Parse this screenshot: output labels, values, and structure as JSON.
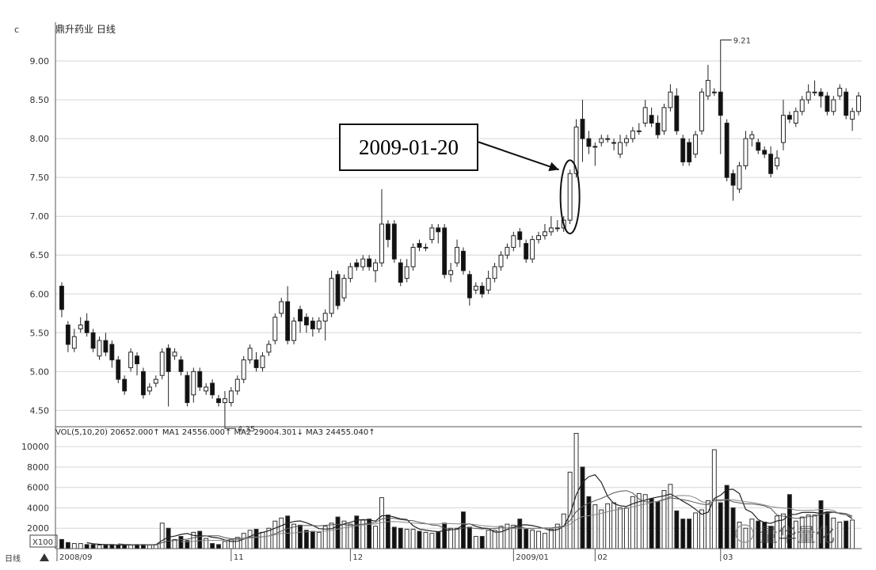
{
  "chart_data": {
    "type": "candlestick",
    "title": "鼎升药业 日线",
    "price_axis": {
      "ticks": [
        "9.00",
        "8.50",
        "8.00",
        "7.50",
        "7.00",
        "6.50",
        "6.00",
        "5.50",
        "5.00",
        "4.50"
      ],
      "ylim": [
        4.3,
        9.5
      ]
    },
    "volume_axis": {
      "ticks": [
        "10000",
        "8000",
        "6000",
        "4000",
        "2000"
      ],
      "ylim": [
        0,
        11800
      ],
      "unit": "X100"
    },
    "volume_legend": "VOL(5,10,20) 20652.000↑ MA1 24556.000↑ MA2 29004.301↓ MA3 24455.040↑",
    "x_labels": [
      "2008/09",
      "11",
      "12",
      "2009/01",
      "02",
      "03"
    ],
    "x_label_index": [
      0,
      27,
      46,
      72,
      85,
      105
    ],
    "corner_label": "日线",
    "max_label": "9.21",
    "min_label": "4.35",
    "annotation": "2009-01-20",
    "annotation_index": 81,
    "watermark": "量华量化",
    "candles": [
      [
        6.1,
        5.8,
        6.15,
        5.7
      ],
      [
        5.6,
        5.35,
        5.65,
        5.25
      ],
      [
        5.3,
        5.45,
        5.55,
        5.25
      ],
      [
        5.55,
        5.6,
        5.7,
        5.5
      ],
      [
        5.65,
        5.5,
        5.75,
        5.45
      ],
      [
        5.5,
        5.3,
        5.55,
        5.25
      ],
      [
        5.2,
        5.4,
        5.45,
        5.15
      ],
      [
        5.4,
        5.25,
        5.5,
        5.2
      ],
      [
        5.35,
        5.15,
        5.4,
        5.05
      ],
      [
        5.15,
        4.9,
        5.2,
        4.85
      ],
      [
        4.9,
        4.75,
        4.95,
        4.7
      ],
      [
        5.05,
        5.25,
        5.3,
        5.0
      ],
      [
        5.2,
        5.1,
        5.25,
        4.95
      ],
      [
        5.0,
        4.7,
        5.05,
        4.65
      ],
      [
        4.75,
        4.8,
        4.85,
        4.7
      ],
      [
        4.85,
        4.9,
        4.95,
        4.8
      ],
      [
        4.95,
        5.25,
        5.3,
        4.9
      ],
      [
        5.3,
        5.0,
        5.35,
        4.55
      ],
      [
        5.2,
        5.25,
        5.3,
        5.15
      ],
      [
        5.15,
        5.0,
        5.2,
        4.95
      ],
      [
        4.95,
        4.6,
        5.0,
        4.55
      ],
      [
        4.7,
        5.0,
        5.05,
        4.6
      ],
      [
        5.0,
        4.8,
        5.05,
        4.75
      ],
      [
        4.75,
        4.8,
        4.85,
        4.7
      ],
      [
        4.85,
        4.7,
        4.9,
        4.65
      ],
      [
        4.65,
        4.6,
        4.7,
        4.55
      ],
      [
        4.6,
        4.65,
        4.75,
        4.35
      ],
      [
        4.6,
        4.75,
        4.8,
        4.55
      ],
      [
        4.75,
        4.9,
        4.95,
        4.7
      ],
      [
        4.9,
        5.15,
        5.2,
        4.85
      ],
      [
        5.15,
        5.3,
        5.35,
        5.1
      ],
      [
        5.15,
        5.05,
        5.25,
        5.0
      ],
      [
        5.05,
        5.2,
        5.25,
        5.0
      ],
      [
        5.25,
        5.35,
        5.4,
        5.2
      ],
      [
        5.4,
        5.7,
        5.75,
        5.35
      ],
      [
        5.75,
        5.9,
        5.95,
        5.7
      ],
      [
        5.9,
        5.4,
        6.1,
        5.35
      ],
      [
        5.4,
        5.65,
        5.7,
        5.35
      ],
      [
        5.8,
        5.65,
        5.85,
        5.5
      ],
      [
        5.7,
        5.6,
        5.75,
        5.5
      ],
      [
        5.65,
        5.55,
        5.7,
        5.45
      ],
      [
        5.55,
        5.65,
        5.7,
        5.5
      ],
      [
        5.65,
        5.75,
        5.8,
        5.4
      ],
      [
        5.75,
        6.2,
        6.3,
        5.7
      ],
      [
        6.25,
        5.85,
        6.3,
        5.8
      ],
      [
        5.95,
        6.2,
        6.25,
        5.9
      ],
      [
        6.2,
        6.35,
        6.4,
        6.15
      ],
      [
        6.4,
        6.35,
        6.45,
        6.3
      ],
      [
        6.35,
        6.45,
        6.5,
        6.3
      ],
      [
        6.45,
        6.35,
        6.5,
        6.3
      ],
      [
        6.3,
        6.4,
        6.45,
        6.15
      ],
      [
        6.4,
        6.9,
        7.35,
        6.35
      ],
      [
        6.9,
        6.7,
        6.95,
        6.6
      ],
      [
        6.9,
        6.45,
        6.95,
        6.4
      ],
      [
        6.4,
        6.15,
        6.45,
        6.1
      ],
      [
        6.2,
        6.35,
        6.45,
        6.15
      ],
      [
        6.35,
        6.6,
        6.65,
        6.3
      ],
      [
        6.65,
        6.6,
        6.7,
        6.55
      ],
      [
        6.6,
        6.6,
        6.65,
        6.55
      ],
      [
        6.7,
        6.85,
        6.9,
        6.65
      ],
      [
        6.85,
        6.8,
        6.9,
        6.65
      ],
      [
        6.85,
        6.25,
        6.9,
        6.2
      ],
      [
        6.25,
        6.3,
        6.4,
        6.15
      ],
      [
        6.4,
        6.6,
        6.7,
        6.35
      ],
      [
        6.55,
        6.3,
        6.6,
        6.25
      ],
      [
        6.25,
        5.95,
        6.3,
        5.85
      ],
      [
        6.05,
        6.1,
        6.15,
        6.0
      ],
      [
        6.1,
        6.0,
        6.15,
        5.95
      ],
      [
        6.05,
        6.2,
        6.3,
        6.0
      ],
      [
        6.2,
        6.35,
        6.4,
        6.15
      ],
      [
        6.35,
        6.5,
        6.55,
        6.3
      ],
      [
        6.5,
        6.6,
        6.65,
        6.45
      ],
      [
        6.6,
        6.75,
        6.8,
        6.55
      ],
      [
        6.8,
        6.7,
        6.85,
        6.6
      ],
      [
        6.65,
        6.45,
        6.7,
        6.4
      ],
      [
        6.45,
        6.7,
        6.75,
        6.4
      ],
      [
        6.7,
        6.75,
        6.8,
        6.65
      ],
      [
        6.75,
        6.8,
        6.9,
        6.7
      ],
      [
        6.8,
        6.85,
        7.0,
        6.75
      ],
      [
        6.85,
        6.85,
        6.95,
        6.8
      ],
      [
        6.85,
        6.95,
        7.0,
        6.8
      ],
      [
        6.95,
        7.55,
        7.6,
        6.9
      ],
      [
        7.55,
        8.15,
        8.25,
        7.5
      ],
      [
        8.25,
        8.0,
        8.5,
        7.7
      ],
      [
        8.0,
        7.9,
        8.1,
        7.8
      ],
      [
        7.9,
        7.9,
        7.95,
        7.65
      ],
      [
        7.95,
        8.0,
        8.05,
        7.9
      ],
      [
        8.0,
        8.0,
        8.05,
        7.95
      ],
      [
        7.95,
        7.95,
        8.0,
        7.85
      ],
      [
        7.8,
        7.95,
        8.05,
        7.75
      ],
      [
        7.95,
        8.0,
        8.05,
        7.9
      ],
      [
        8.0,
        8.1,
        8.15,
        7.95
      ],
      [
        8.1,
        8.1,
        8.2,
        8.05
      ],
      [
        8.2,
        8.4,
        8.5,
        8.15
      ],
      [
        8.3,
        8.2,
        8.4,
        8.15
      ],
      [
        8.2,
        8.05,
        8.3,
        8.0
      ],
      [
        8.1,
        8.4,
        8.45,
        8.05
      ],
      [
        8.4,
        8.6,
        8.7,
        8.35
      ],
      [
        8.55,
        8.1,
        8.65,
        8.05
      ],
      [
        8.0,
        7.7,
        8.05,
        7.65
      ],
      [
        7.95,
        7.7,
        8.0,
        7.65
      ],
      [
        7.8,
        8.05,
        8.1,
        7.75
      ],
      [
        8.1,
        8.6,
        8.65,
        8.05
      ],
      [
        8.55,
        8.75,
        8.95,
        8.5
      ],
      [
        8.6,
        8.6,
        8.65,
        8.55
      ],
      [
        8.6,
        8.3,
        9.21,
        7.8
      ],
      [
        8.2,
        7.5,
        8.25,
        7.45
      ],
      [
        7.55,
        7.4,
        7.6,
        7.2
      ],
      [
        7.35,
        7.65,
        7.7,
        7.3
      ],
      [
        7.65,
        8.0,
        8.1,
        7.6
      ],
      [
        8.0,
        8.05,
        8.1,
        7.9
      ],
      [
        7.95,
        7.85,
        8.0,
        7.8
      ],
      [
        7.85,
        7.8,
        7.9,
        7.75
      ],
      [
        7.8,
        7.55,
        7.9,
        7.5
      ],
      [
        7.65,
        7.75,
        7.85,
        7.6
      ],
      [
        7.95,
        8.3,
        8.5,
        7.85
      ],
      [
        8.3,
        8.25,
        8.35,
        8.2
      ],
      [
        8.2,
        8.35,
        8.4,
        8.15
      ],
      [
        8.35,
        8.5,
        8.55,
        8.3
      ],
      [
        8.5,
        8.6,
        8.7,
        8.45
      ],
      [
        8.6,
        8.6,
        8.75,
        8.55
      ],
      [
        8.6,
        8.55,
        8.65,
        8.4
      ],
      [
        8.55,
        8.35,
        8.6,
        8.3
      ],
      [
        8.35,
        8.5,
        8.55,
        8.3
      ],
      [
        8.55,
        8.65,
        8.7,
        8.5
      ],
      [
        8.6,
        8.3,
        8.65,
        8.25
      ],
      [
        8.25,
        8.35,
        8.4,
        8.1
      ],
      [
        8.35,
        8.55,
        8.6,
        8.3
      ]
    ],
    "volume": [
      900,
      600,
      500,
      500,
      400,
      400,
      350,
      350,
      400,
      350,
      350,
      350,
      400,
      400,
      350,
      400,
      2500,
      2000,
      900,
      1200,
      800,
      1600,
      1700,
      1000,
      500,
      400,
      700,
      900,
      1100,
      1500,
      1800,
      1900,
      1600,
      2000,
      2700,
      3000,
      3200,
      2400,
      2300,
      1800,
      1700,
      1600,
      2200,
      2500,
      3100,
      2700,
      2400,
      3200,
      2800,
      2900,
      2200,
      5000,
      3300,
      2100,
      2000,
      1900,
      1900,
      1700,
      1600,
      1500,
      1600,
      2500,
      2000,
      2000,
      3600,
      2100,
      1200,
      1200,
      1800,
      1800,
      2200,
      2400,
      2300,
      2900,
      1900,
      1800,
      1700,
      1500,
      1900,
      2400,
      3400,
      7500,
      11300,
      8000,
      5100,
      4300,
      3800,
      4400,
      4500,
      4000,
      4000,
      5100,
      5400,
      5300,
      4900,
      4600,
      5700,
      6300,
      3700,
      2900,
      2900,
      3500,
      3800,
      4700,
      9700,
      4500,
      6200,
      4000,
      2600,
      2000,
      2900,
      2700,
      2600,
      2200,
      3200,
      3400,
      5300,
      2700,
      3100,
      3300,
      3300,
      4700,
      3600,
      3000,
      2600,
      2700,
      2800
    ]
  }
}
